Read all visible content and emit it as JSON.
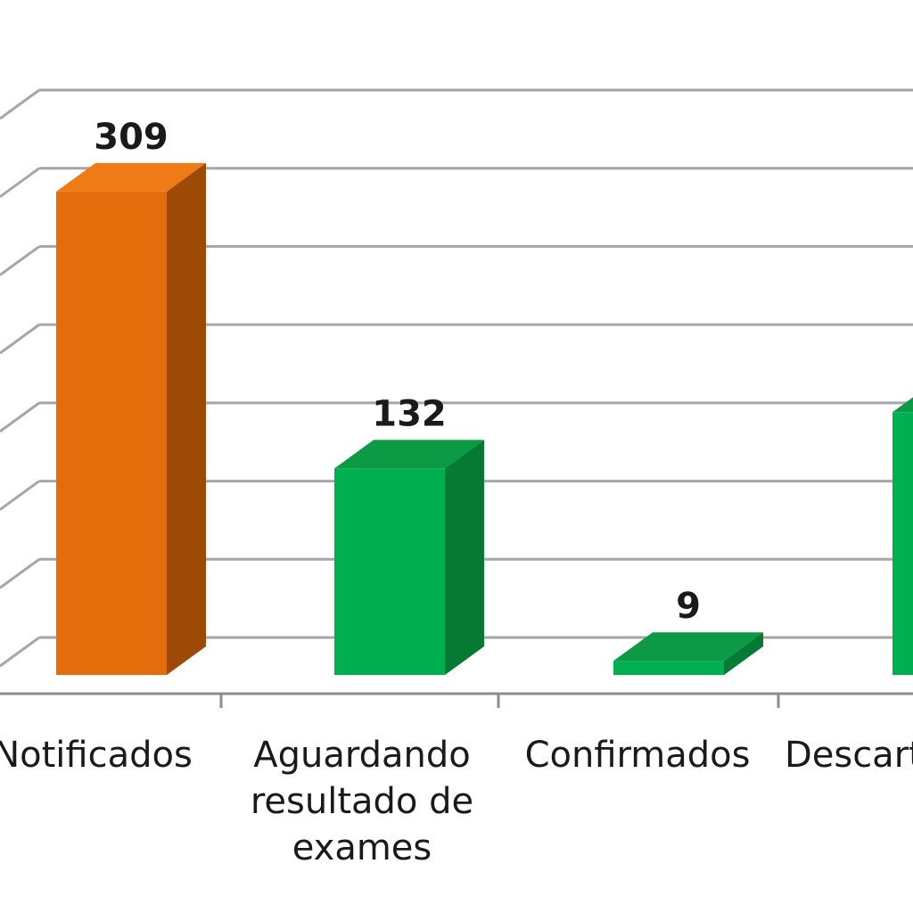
{
  "chart_data": {
    "type": "bar",
    "categories": [
      [
        "Notificados"
      ],
      [
        "Aguardando",
        "resultado de",
        "exames"
      ],
      [
        "Confirmados"
      ],
      [
        "Descartados"
      ]
    ],
    "values": [
      309,
      132,
      9,
      168
    ],
    "ylim": [
      0,
      350
    ],
    "grid": true,
    "legend": "none",
    "colors": {
      "Notificados": [
        "#e46c0a",
        "#f07a15",
        "#9c4a06"
      ],
      "others": [
        "#00b050",
        "#0c9a44",
        "#057a33"
      ]
    }
  }
}
